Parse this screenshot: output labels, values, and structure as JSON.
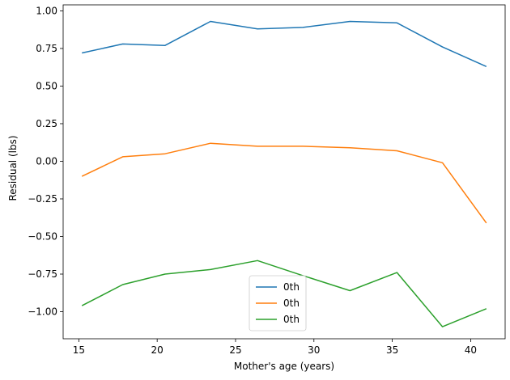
{
  "chart_data": {
    "type": "line",
    "title": "",
    "xlabel": "Mother's age (years)",
    "ylabel": "Residual (lbs)",
    "xlim": [
      14.0,
      42.2
    ],
    "ylim": [
      -1.18,
      1.04
    ],
    "x_ticks": [
      15,
      20,
      25,
      30,
      35,
      40
    ],
    "y_ticks": [
      -1.0,
      -0.75,
      -0.5,
      -0.25,
      0.0,
      0.25,
      0.5,
      0.75,
      1.0
    ],
    "x_tick_labels": [
      "15",
      "20",
      "25",
      "30",
      "35",
      "40"
    ],
    "y_tick_labels": [
      "−1.00",
      "−0.75",
      "−0.50",
      "−0.25",
      "0.00",
      "0.25",
      "0.50",
      "0.75",
      "1.00"
    ],
    "x": [
      15.2,
      17.8,
      20.5,
      23.4,
      26.4,
      29.3,
      32.3,
      35.3,
      38.2,
      41.0
    ],
    "series": [
      {
        "name": "0th",
        "color": "#1f77b4",
        "values": [
          0.72,
          0.78,
          0.77,
          0.93,
          0.88,
          0.89,
          0.93,
          0.92,
          0.76,
          0.63
        ]
      },
      {
        "name": "0th",
        "color": "#ff7f0e",
        "values": [
          -0.1,
          0.03,
          0.05,
          0.12,
          0.1,
          0.1,
          0.09,
          0.07,
          -0.01,
          -0.41
        ]
      },
      {
        "name": "0th",
        "color": "#2ca02c",
        "values": [
          -0.96,
          -0.82,
          -0.75,
          -0.72,
          -0.66,
          -0.76,
          -0.86,
          -0.74,
          -1.1,
          -0.98
        ]
      }
    ],
    "grid": false,
    "legend_position": "lower center"
  }
}
